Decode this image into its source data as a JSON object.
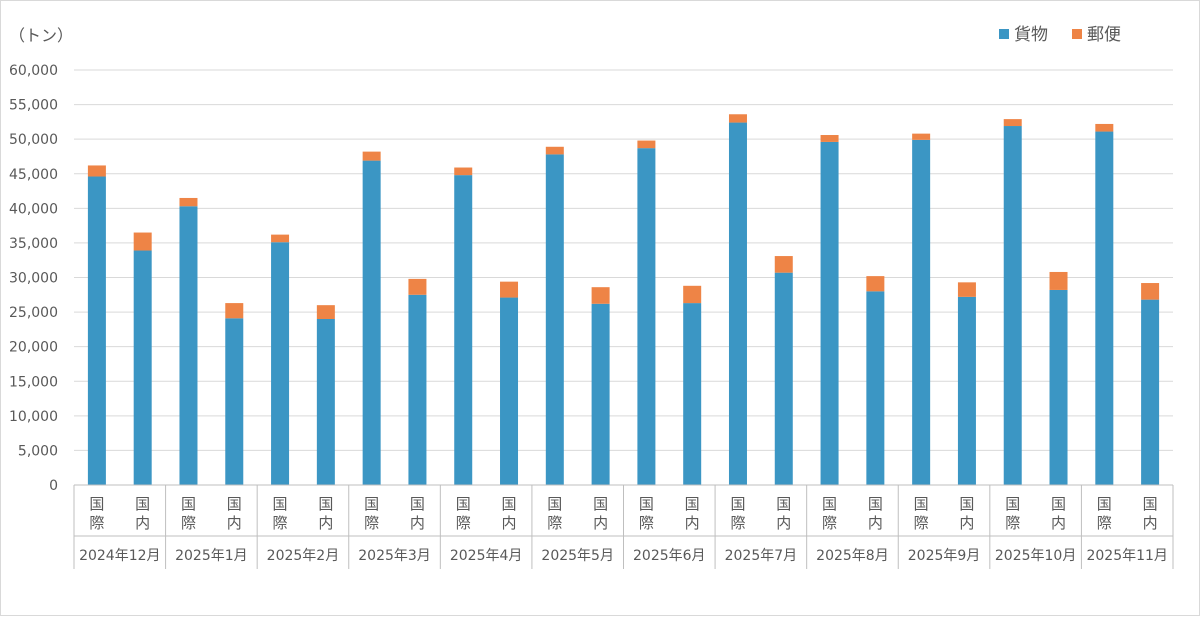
{
  "chart_data": {
    "type": "bar",
    "stacked": true,
    "unit_label": "（トン）",
    "ylim": [
      0,
      60000
    ],
    "yticks": [
      0,
      5000,
      10000,
      15000,
      20000,
      25000,
      30000,
      35000,
      40000,
      45000,
      50000,
      55000,
      60000
    ],
    "ytick_labels": [
      "0",
      "5,000",
      "10,000",
      "15,000",
      "20,000",
      "25,000",
      "30,000",
      "35,000",
      "40,000",
      "45,000",
      "50,000",
      "55,000",
      "60,000"
    ],
    "grid": true,
    "legend_position": "top-right",
    "months": [
      "2024年12月",
      "2025年1月",
      "2025年2月",
      "2025年3月",
      "2025年4月",
      "2025年5月",
      "2025年6月",
      "2025年7月",
      "2025年8月",
      "2025年9月",
      "2025年10月",
      "2025年11月"
    ],
    "subcategories": [
      {
        "label": "国際",
        "chars": [
          "国",
          "際"
        ]
      },
      {
        "label": "国内",
        "chars": [
          "国",
          "内"
        ]
      }
    ],
    "series": [
      {
        "name": "貨物",
        "color": "#3b96c4",
        "values": [
          44600,
          33900,
          40300,
          24100,
          35100,
          24000,
          46900,
          27500,
          44800,
          27100,
          47800,
          26200,
          48700,
          26300,
          52400,
          30700,
          49600,
          28000,
          49900,
          27200,
          51900,
          28200,
          51100,
          26800
        ]
      },
      {
        "name": "郵便",
        "color": "#ee8446",
        "values": [
          1600,
          2600,
          1200,
          2200,
          1100,
          2000,
          1300,
          2300,
          1100,
          2300,
          1100,
          2400,
          1100,
          2500,
          1200,
          2400,
          1000,
          2200,
          900,
          2100,
          1000,
          2600,
          1100,
          2400
        ]
      }
    ]
  }
}
